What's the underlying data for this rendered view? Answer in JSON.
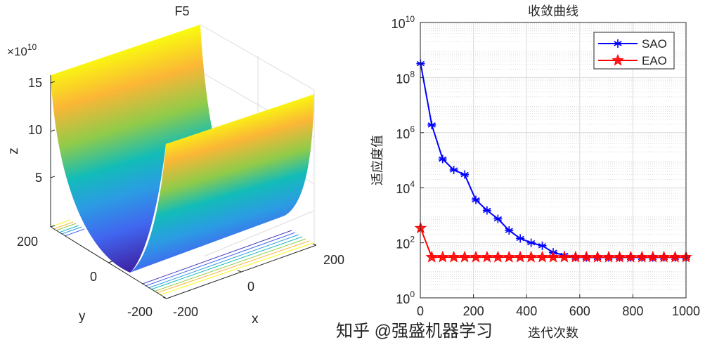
{
  "chart_data": [
    {
      "type": "surface",
      "title": "F5",
      "xlabel": "x",
      "ylabel": "y",
      "zlabel": "z",
      "z_exponent_label": "×10",
      "z_exponent": "10",
      "xticks": [
        "-200",
        "0",
        "200"
      ],
      "yticks": [
        "-200",
        "0",
        "200"
      ],
      "zticks": [
        "5",
        "10",
        "15"
      ],
      "xlim": [
        -200,
        200
      ],
      "ylim": [
        -200,
        200
      ],
      "zlim": [
        0,
        160000000000.0
      ],
      "colormap": "parula",
      "contour_on_floor": true,
      "grid": true
    },
    {
      "type": "line",
      "title": "收敛曲线",
      "xlabel": "迭代次数",
      "ylabel": "适应度值",
      "xlim": [
        0,
        1000
      ],
      "ylim": [
        1,
        10000000000.0
      ],
      "yscale": "log",
      "xticks": [
        "0",
        "200",
        "400",
        "600",
        "800",
        "1000"
      ],
      "yticks": [
        {
          "base": "10",
          "exp": "0"
        },
        {
          "base": "10",
          "exp": "2"
        },
        {
          "base": "10",
          "exp": "4"
        },
        {
          "base": "10",
          "exp": "6"
        },
        {
          "base": "10",
          "exp": "8"
        },
        {
          "base": "10",
          "exp": "10"
        }
      ],
      "grid": true,
      "minor_grid": true,
      "legend_position": "top-right",
      "x": [
        1,
        43,
        84,
        126,
        167,
        209,
        251,
        292,
        334,
        376,
        417,
        459,
        500,
        542,
        584,
        625,
        667,
        709,
        750,
        792,
        834,
        875,
        917,
        959,
        1000
      ],
      "series": [
        {
          "name": "SAO",
          "color": "#0000ff",
          "marker": "asterisk",
          "values": [
            320000000.0,
            1900000.0,
            110000.0,
            44000.0,
            30000.0,
            3600.0,
            1500.0,
            740,
            280,
            144,
            100,
            78,
            45,
            35,
            30,
            29.5,
            29.5,
            29.5,
            29.5,
            29.5,
            29.5,
            29.5,
            29.5,
            29.5,
            29.5
          ]
        },
        {
          "name": "EAO",
          "color": "#ff0000",
          "marker": "pentagram",
          "values": [
            340,
            30,
            30,
            30,
            30,
            30,
            30,
            30,
            30,
            30,
            30,
            30,
            30,
            30,
            30,
            30,
            30,
            30,
            30,
            30,
            30,
            30,
            30,
            30,
            30
          ]
        }
      ]
    }
  ],
  "watermark": "知乎 @强盛机器学习"
}
